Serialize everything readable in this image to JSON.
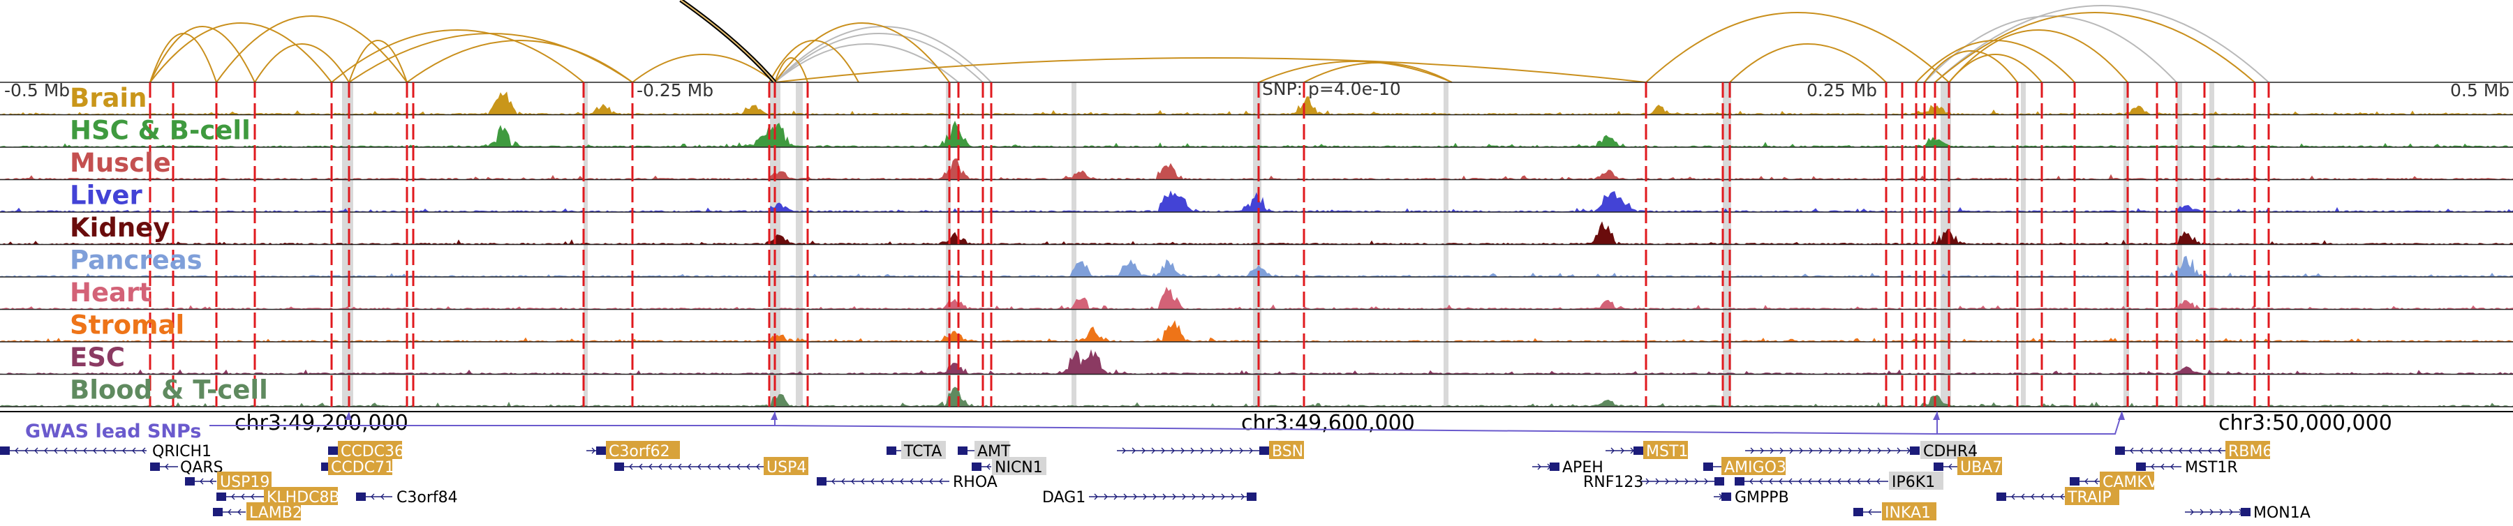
{
  "axis": {
    "left_label": "-0.5 Mb",
    "mid_left_label": "-0.25 Mb",
    "snp_label": "SNP: p=4.0e-10",
    "mid_right_label": "0.25 Mb",
    "right_label": "0.5 Mb"
  },
  "tracks": [
    {
      "name": "Brain",
      "color": "#c9961a",
      "seed": 11,
      "peaks": [
        [
          0.2,
          1.0
        ],
        [
          0.3,
          0.5
        ],
        [
          0.24,
          0.4
        ],
        [
          0.52,
          0.7
        ],
        [
          0.66,
          0.35
        ],
        [
          0.77,
          0.4
        ],
        [
          0.85,
          0.35
        ]
      ]
    },
    {
      "name": "HSC & B-cell",
      "color": "#3f9a3f",
      "seed": 23,
      "peaks": [
        [
          0.2,
          0.9
        ],
        [
          0.31,
          0.85
        ],
        [
          0.38,
          1.0
        ],
        [
          0.305,
          0.6
        ],
        [
          0.77,
          0.4
        ],
        [
          0.64,
          0.45
        ]
      ]
    },
    {
      "name": "Muscle",
      "color": "#c45050",
      "seed": 37,
      "peaks": [
        [
          0.38,
          0.9
        ],
        [
          0.465,
          0.8
        ],
        [
          0.31,
          0.35
        ],
        [
          0.43,
          0.4
        ],
        [
          0.64,
          0.3
        ]
      ]
    },
    {
      "name": "Liver",
      "color": "#4343d6",
      "seed": 41,
      "peaks": [
        [
          0.465,
          0.9
        ],
        [
          0.5,
          0.7
        ],
        [
          0.64,
          0.7
        ],
        [
          0.645,
          0.6
        ],
        [
          0.31,
          0.4
        ],
        [
          0.87,
          0.3
        ],
        [
          0.47,
          0.5
        ]
      ]
    },
    {
      "name": "Kidney",
      "color": "#6a0c0c",
      "seed": 53,
      "peaks": [
        [
          0.638,
          0.9
        ],
        [
          0.775,
          0.8
        ],
        [
          0.87,
          0.6
        ],
        [
          0.38,
          0.5
        ],
        [
          0.31,
          0.5
        ]
      ]
    },
    {
      "name": "Pancreas",
      "color": "#7f9fd9",
      "seed": 61,
      "peaks": [
        [
          0.43,
          0.7
        ],
        [
          0.45,
          0.8
        ],
        [
          0.465,
          0.7
        ],
        [
          0.87,
          0.9
        ],
        [
          0.5,
          0.4
        ]
      ]
    },
    {
      "name": "Heart",
      "color": "#d36277",
      "seed": 71,
      "peaks": [
        [
          0.465,
          0.9
        ],
        [
          0.43,
          0.5
        ],
        [
          0.38,
          0.4
        ],
        [
          0.64,
          0.35
        ],
        [
          0.87,
          0.4
        ]
      ]
    },
    {
      "name": "Stromal",
      "color": "#ee7418",
      "seed": 83,
      "peaks": [
        [
          0.467,
          1.0
        ],
        [
          0.435,
          0.55
        ],
        [
          0.38,
          0.4
        ],
        [
          0.31,
          0.3
        ]
      ]
    },
    {
      "name": "ESC",
      "color": "#8b3a62",
      "seed": 97,
      "peaks": [
        [
          0.428,
          0.9
        ],
        [
          0.435,
          1.0
        ],
        [
          0.38,
          0.5
        ],
        [
          0.87,
          0.3
        ]
      ]
    },
    {
      "name": "Blood & T-cell",
      "color": "#5f8a5f",
      "seed": 101,
      "peaks": [
        [
          0.38,
          0.8
        ],
        [
          0.31,
          0.5
        ],
        [
          0.77,
          0.5
        ],
        [
          0.64,
          0.3
        ]
      ]
    }
  ],
  "red_lines_px": "see-script",
  "coords": {
    "c1": "chr3:49,200,000",
    "c2": "chr3:49,600,000",
    "c3": "chr3:50,000,000"
  },
  "gwas_label": "GWAS lead SNPs",
  "genes": [
    {
      "name": "QRICH1",
      "hl": false
    },
    {
      "name": "QARS",
      "hl": false
    },
    {
      "name": "USP19",
      "hl": true
    },
    {
      "name": "KLHDC8B",
      "hl": true
    },
    {
      "name": "LAMB2",
      "hl": true
    },
    {
      "name": "CCDC36",
      "hl": true
    },
    {
      "name": "CCDC71",
      "hl": true
    },
    {
      "name": "C3orf84",
      "hl": false
    },
    {
      "name": "C3orf62",
      "hl": true
    },
    {
      "name": "USP4",
      "hl": true
    },
    {
      "name": "TCTA",
      "hl": false
    },
    {
      "name": "AMT",
      "hl": false
    },
    {
      "name": "NICN1",
      "hl": false
    },
    {
      "name": "RHOA",
      "hl": false
    },
    {
      "name": "DAG1",
      "hl": false
    },
    {
      "name": "BSN",
      "hl": true
    },
    {
      "name": "APEH",
      "hl": false
    },
    {
      "name": "MST1",
      "hl": true
    },
    {
      "name": "RNF123",
      "hl": false
    },
    {
      "name": "AMIGO3",
      "hl": true
    },
    {
      "name": "GMPPB",
      "hl": false
    },
    {
      "name": "CDHR4",
      "hl": false
    },
    {
      "name": "UBA7",
      "hl": true
    },
    {
      "name": "IP6K1",
      "hl": false
    },
    {
      "name": "INKA1",
      "hl": true
    },
    {
      "name": "TRAIP",
      "hl": true
    },
    {
      "name": "CAMKV",
      "hl": true
    },
    {
      "name": "RBM6",
      "hl": true
    },
    {
      "name": "MST1R",
      "hl": false
    },
    {
      "name": "MON1A",
      "hl": false
    }
  ],
  "colors": {
    "red_line": "#e0191e",
    "grey_band": "#cfcfcf",
    "gene_hl": "#d8a23a",
    "gene_strand": "#1c1c7a",
    "gwas": "#6a5acd",
    "arc_gold": "#c98f1c",
    "arc_grey": "#b9b9b9"
  }
}
